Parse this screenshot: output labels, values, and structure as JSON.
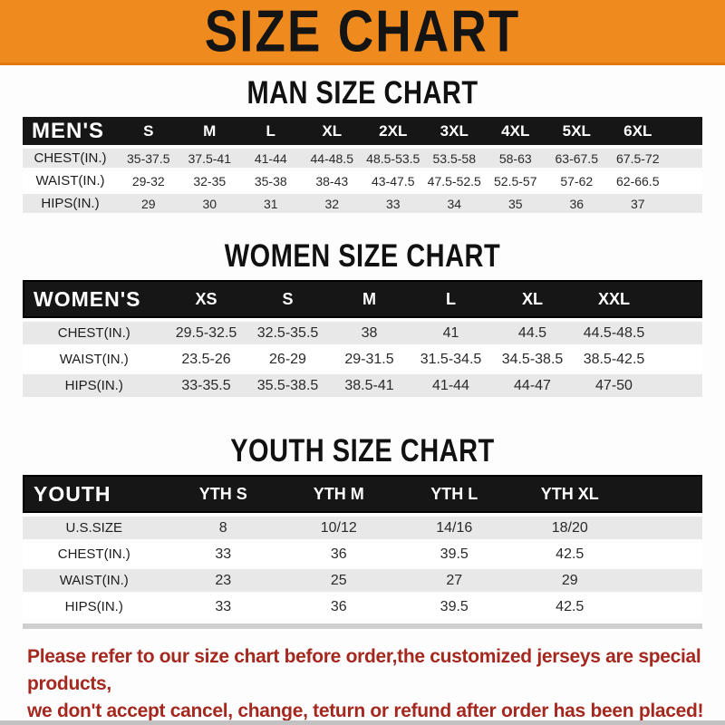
{
  "banner": {
    "title": "SIZE CHART"
  },
  "colors": {
    "banner_orange": "#ef8a1e",
    "header_black": "#161616",
    "row_gray": "#e8e8e8",
    "note_red": "#a5281f"
  },
  "sections": [
    {
      "heading": "MAN SIZE CHART",
      "table": {
        "header": {
          "label": "MEN'S",
          "columns": [
            "S",
            "M",
            "L",
            "XL",
            "2XL",
            "3XL",
            "4XL",
            "5XL",
            "6XL"
          ]
        },
        "rows": [
          {
            "label": "CHEST(IN.)",
            "values": [
              "35-37.5",
              "37.5-41",
              "41-44",
              "44-48.5",
              "48.5-53.5",
              "53.5-58",
              "58-63",
              "63-67.5",
              "67.5-72"
            ]
          },
          {
            "label": "WAIST(IN.)",
            "values": [
              "29-32",
              "32-35",
              "35-38",
              "38-43",
              "43-47.5",
              "47.5-52.5",
              "52.5-57",
              "57-62",
              "62-66.5"
            ]
          },
          {
            "label": "HIPS(IN.)",
            "values": [
              "29",
              "30",
              "31",
              "32",
              "33",
              "34",
              "35",
              "36",
              "37"
            ]
          }
        ]
      }
    },
    {
      "heading": "WOMEN SIZE CHART",
      "table": {
        "header": {
          "label": "WOMEN'S",
          "columns": [
            "XS",
            "S",
            "M",
            "L",
            "XL",
            "XXL"
          ]
        },
        "rows": [
          {
            "label": "CHEST(IN.)",
            "values": [
              "29.5-32.5",
              "32.5-35.5",
              "38",
              "41",
              "44.5",
              "44.5-48.5"
            ]
          },
          {
            "label": "WAIST(IN.)",
            "values": [
              "23.5-26",
              "26-29",
              "29-31.5",
              "31.5-34.5",
              "34.5-38.5",
              "38.5-42.5"
            ]
          },
          {
            "label": "HIPS(IN.)",
            "values": [
              "33-35.5",
              "35.5-38.5",
              "38.5-41",
              "41-44",
              "44-47",
              "47-50"
            ]
          }
        ]
      }
    },
    {
      "heading": "YOUTH SIZE CHART",
      "table": {
        "header": {
          "label": "YOUTH",
          "columns": [
            "YTH S",
            "YTH M",
            "YTH L",
            "YTH XL"
          ]
        },
        "rows": [
          {
            "label": "U.S.SIZE",
            "values": [
              "8",
              "10/12",
              "14/16",
              "18/20"
            ]
          },
          {
            "label": "CHEST(IN.)",
            "values": [
              "33",
              "36",
              "39.5",
              "42.5"
            ]
          },
          {
            "label": "WAIST(IN.)",
            "values": [
              "23",
              "25",
              "27",
              "29"
            ]
          },
          {
            "label": "HIPS(IN.)",
            "values": [
              "33",
              "36",
              "39.5",
              "42.5"
            ]
          }
        ]
      }
    }
  ],
  "footer": {
    "line1": "Please refer to our size chart before order,the customized jerseys are special products,",
    "line2": "we don't accept cancel, change, teturn or refund after order has been placed!"
  }
}
